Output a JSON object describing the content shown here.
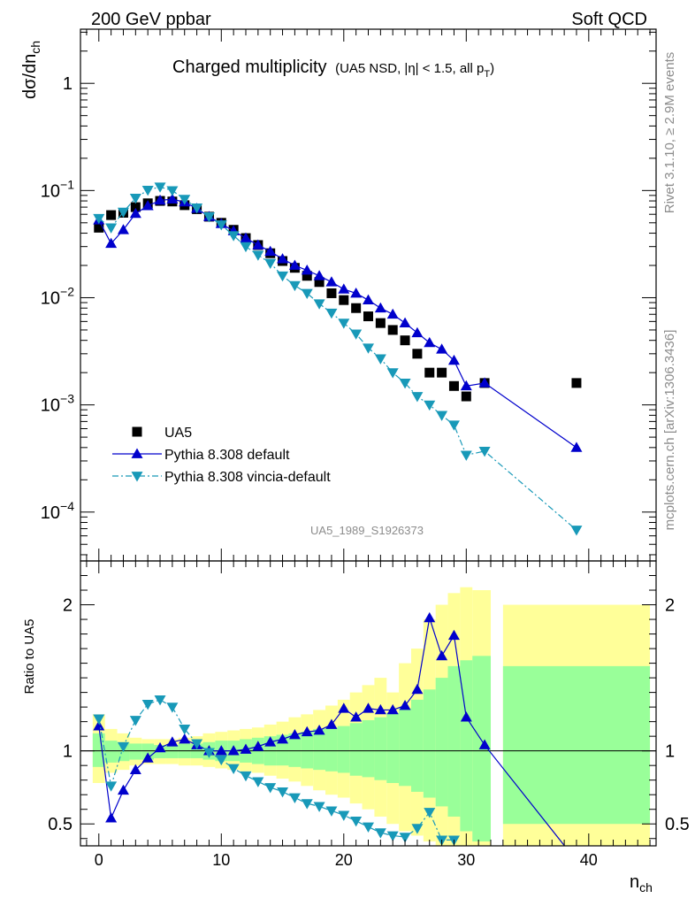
{
  "header": {
    "left": "200 GeV ppbar",
    "right": "Soft QCD"
  },
  "side_labels": {
    "upper": "Rivet 3.1.10, ≥ 2.9M events",
    "lower": "mcplots.cern.ch [arXiv:1306.3436]"
  },
  "chart_data": {
    "type": "scatter",
    "title": {
      "main": "Charged multiplicity",
      "detail_prefix": "(UA5 NSD, |η| < 1.5, all p",
      "detail_sub": "T",
      "detail_suffix": ")"
    },
    "analysis_tag": "UA5_1989_S1926373",
    "ylabel_main": {
      "base": "dσ/dn",
      "sub": "ch"
    },
    "ylabel_ratio": "Ratio to UA5",
    "xlabel": {
      "base": "n",
      "sub": "ch"
    },
    "xlim": [
      -1.5,
      45.5
    ],
    "ylim_main": [
      3.5e-05,
      3.2
    ],
    "ylim_ratio": [
      0.35,
      2.3
    ],
    "yscale_main": "log",
    "x_ticks": [
      "0",
      "10",
      "20",
      "30",
      "40"
    ],
    "y_ticks_main": [
      {
        "value": 1,
        "base": "1",
        "exp": ""
      },
      {
        "value": 0.1,
        "base": "10",
        "exp": "−1"
      },
      {
        "value": 0.01,
        "base": "10",
        "exp": "−2"
      },
      {
        "value": 0.001,
        "base": "10",
        "exp": "−3"
      },
      {
        "value": 0.0001,
        "base": "10",
        "exp": "−4"
      }
    ],
    "y_ticks_ratio": [
      "0.5",
      "1",
      "2"
    ],
    "legend": {
      "placement": "bottom-left",
      "entries": [
        "UA5",
        "Pythia 8.308 default",
        "Pythia 8.308 vincia-default"
      ]
    },
    "series": [
      {
        "name": "UA5",
        "color": "#000000",
        "marker": "square",
        "x": [
          0,
          1,
          2,
          3,
          4,
          5,
          6,
          7,
          8,
          9,
          10,
          11,
          12,
          13,
          14,
          15,
          16,
          17,
          18,
          19,
          20,
          21,
          22,
          23,
          24,
          25,
          26,
          27,
          28,
          29,
          30,
          31.5,
          39
        ],
        "y": [
          0.045,
          0.059,
          0.062,
          0.07,
          0.076,
          0.08,
          0.079,
          0.073,
          0.067,
          0.057,
          0.05,
          0.043,
          0.036,
          0.031,
          0.026,
          0.022,
          0.019,
          0.016,
          0.014,
          0.011,
          0.0095,
          0.008,
          0.0067,
          0.0058,
          0.005,
          0.004,
          0.003,
          0.002,
          0.002,
          0.0015,
          0.0012,
          0.0016,
          0.0016
        ]
      },
      {
        "name": "Pythia 8.308 default",
        "color": "#0000cc",
        "marker": "triangle-up",
        "line": "solid",
        "x": [
          0,
          1,
          2,
          3,
          4,
          5,
          6,
          7,
          8,
          9,
          10,
          11,
          12,
          13,
          14,
          15,
          16,
          17,
          18,
          19,
          20,
          21,
          22,
          23,
          24,
          25,
          26,
          27,
          28,
          29,
          30,
          31.5,
          39
        ],
        "y": [
          0.053,
          0.032,
          0.043,
          0.061,
          0.072,
          0.081,
          0.083,
          0.078,
          0.068,
          0.057,
          0.049,
          0.042,
          0.036,
          0.031,
          0.027,
          0.023,
          0.02,
          0.018,
          0.016,
          0.014,
          0.012,
          0.011,
          0.0095,
          0.008,
          0.007,
          0.0058,
          0.0047,
          0.0038,
          0.0033,
          0.0026,
          0.0015,
          0.0016,
          0.0004
        ]
      },
      {
        "name": "Pythia 8.308 vincia-default",
        "color": "#1899b8",
        "marker": "triangle-down",
        "line": "dashdot",
        "x": [
          0,
          1,
          2,
          3,
          4,
          5,
          6,
          7,
          8,
          9,
          10,
          11,
          12,
          13,
          14,
          15,
          16,
          17,
          18,
          19,
          20,
          21,
          22,
          23,
          24,
          25,
          26,
          27,
          28,
          29,
          30,
          31.5,
          39
        ],
        "y": [
          0.055,
          0.045,
          0.063,
          0.085,
          0.101,
          0.108,
          0.1,
          0.083,
          0.069,
          0.057,
          0.048,
          0.038,
          0.03,
          0.025,
          0.021,
          0.016,
          0.013,
          0.011,
          0.0088,
          0.0072,
          0.0058,
          0.0046,
          0.0034,
          0.0027,
          0.002,
          0.0016,
          0.0012,
          0.001,
          0.0008,
          0.00065,
          0.00034,
          0.00037,
          6.8e-05
        ]
      }
    ],
    "ratio_series": [
      {
        "name": "Pythia 8.308 default",
        "color": "#0000cc",
        "marker": "triangle-up",
        "line": "solid",
        "x": [
          0,
          1,
          2,
          3,
          4,
          5,
          6,
          7,
          8,
          9,
          10,
          11,
          12,
          13,
          14,
          15,
          16,
          17,
          18,
          19,
          20,
          21,
          22,
          23,
          24,
          25,
          26,
          27,
          28,
          29,
          30,
          31.5,
          38.5
        ],
        "y": [
          1.17,
          0.54,
          0.73,
          0.87,
          0.95,
          1.02,
          1.06,
          1.08,
          1.04,
          1.0,
          1.0,
          1.0,
          1.01,
          1.03,
          1.06,
          1.08,
          1.11,
          1.13,
          1.14,
          1.18,
          1.29,
          1.23,
          1.29,
          1.28,
          1.28,
          1.31,
          1.42,
          1.91,
          1.65,
          1.79,
          1.23,
          1.04,
          0.3
        ]
      },
      {
        "name": "Pythia 8.308 vincia-default",
        "color": "#1899b8",
        "marker": "triangle-down",
        "line": "dashdot",
        "x": [
          0,
          1,
          2,
          3,
          4,
          5,
          6,
          7,
          8,
          9,
          10,
          11,
          12,
          13,
          14,
          15,
          16,
          17,
          18,
          19,
          20,
          21,
          22,
          23,
          24,
          25,
          26,
          27,
          28,
          29
        ],
        "y": [
          1.22,
          0.76,
          1.03,
          1.21,
          1.32,
          1.35,
          1.3,
          1.15,
          1.05,
          0.99,
          0.94,
          0.88,
          0.83,
          0.79,
          0.75,
          0.72,
          0.68,
          0.64,
          0.62,
          0.59,
          0.56,
          0.52,
          0.48,
          0.44,
          0.42,
          0.41,
          0.47,
          0.58,
          0.39,
          0.39
        ]
      }
    ],
    "uncertainty_bands": {
      "colors": {
        "stat": "#99ff99",
        "total": "#ffff99"
      },
      "bins": [
        {
          "x0": -0.5,
          "x1": 0.5,
          "stat": [
            0.89,
            1.12
          ],
          "total": [
            0.78,
            1.25
          ]
        },
        {
          "x0": 0.5,
          "x1": 1.5,
          "stat": [
            0.92,
            1.07
          ],
          "total": [
            0.85,
            1.15
          ]
        },
        {
          "x0": 1.5,
          "x1": 2.5,
          "stat": [
            0.93,
            1.06
          ],
          "total": [
            0.87,
            1.12
          ]
        },
        {
          "x0": 2.5,
          "x1": 3.5,
          "stat": [
            0.94,
            1.05
          ],
          "total": [
            0.9,
            1.09
          ]
        },
        {
          "x0": 3.5,
          "x1": 4.5,
          "stat": [
            0.94,
            1.05
          ],
          "total": [
            0.91,
            1.08
          ]
        },
        {
          "x0": 4.5,
          "x1": 5.5,
          "stat": [
            0.95,
            1.04
          ],
          "total": [
            0.91,
            1.08
          ]
        },
        {
          "x0": 5.5,
          "x1": 6.5,
          "stat": [
            0.95,
            1.04
          ],
          "total": [
            0.91,
            1.08
          ]
        },
        {
          "x0": 6.5,
          "x1": 7.5,
          "stat": [
            0.95,
            1.05
          ],
          "total": [
            0.9,
            1.09
          ]
        },
        {
          "x0": 7.5,
          "x1": 8.5,
          "stat": [
            0.95,
            1.05
          ],
          "total": [
            0.9,
            1.1
          ]
        },
        {
          "x0": 8.5,
          "x1": 9.5,
          "stat": [
            0.94,
            1.06
          ],
          "total": [
            0.89,
            1.12
          ]
        },
        {
          "x0": 9.5,
          "x1": 10.5,
          "stat": [
            0.93,
            1.07
          ],
          "total": [
            0.88,
            1.13
          ]
        },
        {
          "x0": 10.5,
          "x1": 11.5,
          "stat": [
            0.93,
            1.07
          ],
          "total": [
            0.87,
            1.14
          ]
        },
        {
          "x0": 11.5,
          "x1": 12.5,
          "stat": [
            0.92,
            1.08
          ],
          "total": [
            0.86,
            1.15
          ]
        },
        {
          "x0": 12.5,
          "x1": 13.5,
          "stat": [
            0.91,
            1.09
          ],
          "total": [
            0.85,
            1.16
          ]
        },
        {
          "x0": 13.5,
          "x1": 14.5,
          "stat": [
            0.9,
            1.1
          ],
          "total": [
            0.83,
            1.18
          ]
        },
        {
          "x0": 14.5,
          "x1": 15.5,
          "stat": [
            0.9,
            1.11
          ],
          "total": [
            0.81,
            1.2
          ]
        },
        {
          "x0": 15.5,
          "x1": 16.5,
          "stat": [
            0.89,
            1.12
          ],
          "total": [
            0.79,
            1.23
          ]
        },
        {
          "x0": 16.5,
          "x1": 17.5,
          "stat": [
            0.88,
            1.13
          ],
          "total": [
            0.76,
            1.25
          ]
        },
        {
          "x0": 17.5,
          "x1": 18.5,
          "stat": [
            0.87,
            1.15
          ],
          "total": [
            0.73,
            1.28
          ]
        },
        {
          "x0": 18.5,
          "x1": 19.5,
          "stat": [
            0.86,
            1.16
          ],
          "total": [
            0.7,
            1.31
          ]
        },
        {
          "x0": 19.5,
          "x1": 20.5,
          "stat": [
            0.85,
            1.17
          ],
          "total": [
            0.68,
            1.35
          ]
        },
        {
          "x0": 20.5,
          "x1": 21.5,
          "stat": [
            0.83,
            1.19
          ],
          "total": [
            0.64,
            1.4
          ]
        },
        {
          "x0": 21.5,
          "x1": 22.5,
          "stat": [
            0.82,
            1.21
          ],
          "total": [
            0.6,
            1.45
          ]
        },
        {
          "x0": 22.5,
          "x1": 23.5,
          "stat": [
            0.8,
            1.23
          ],
          "total": [
            0.55,
            1.5
          ]
        },
        {
          "x0": 23.5,
          "x1": 24.5,
          "stat": [
            0.78,
            1.26
          ],
          "total": [
            0.5,
            1.4
          ]
        },
        {
          "x0": 24.5,
          "x1": 25.5,
          "stat": [
            0.76,
            1.29
          ],
          "total": [
            0.45,
            1.6
          ]
        },
        {
          "x0": 25.5,
          "x1": 26.5,
          "stat": [
            0.72,
            1.35
          ],
          "total": [
            0.42,
            1.7
          ]
        },
        {
          "x0": 26.5,
          "x1": 27.5,
          "stat": [
            0.68,
            1.42
          ],
          "total": [
            0.38,
            1.9
          ]
        },
        {
          "x0": 27.5,
          "x1": 28.5,
          "stat": [
            0.62,
            1.5
          ],
          "total": [
            0.32,
            2.0
          ]
        },
        {
          "x0": 28.5,
          "x1": 29.5,
          "stat": [
            0.55,
            1.58
          ],
          "total": [
            0.3,
            2.08
          ]
        },
        {
          "x0": 29.5,
          "x1": 30.5,
          "stat": [
            0.45,
            1.62
          ],
          "total": [
            0.3,
            2.12
          ]
        },
        {
          "x0": 30.5,
          "x1": 32.0,
          "stat": [
            0.38,
            1.65
          ],
          "total": [
            0.3,
            2.1
          ]
        },
        {
          "x0": 33.0,
          "x1": 45.0,
          "stat": [
            0.5,
            1.58
          ],
          "total": [
            0.3,
            2.0
          ]
        }
      ]
    }
  }
}
